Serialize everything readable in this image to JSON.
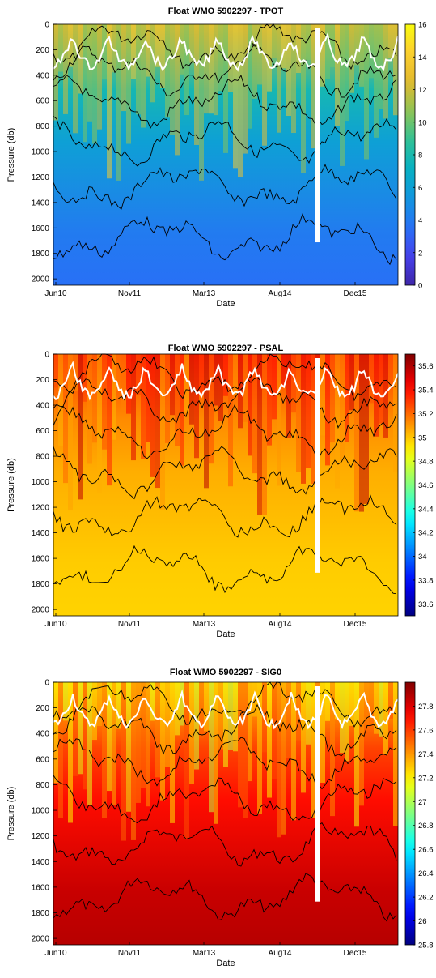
{
  "chart_data": [
    {
      "type": "heatmap",
      "title": "Float WMO 5902297 - TPOT",
      "xlabel": "Date",
      "ylabel": "Pressure (db)",
      "x_ticks": [
        "Jun10",
        "Nov11",
        "Mar13",
        "Aug14",
        "Dec15"
      ],
      "y_ticks": [
        0,
        200,
        400,
        600,
        800,
        1000,
        1200,
        1400,
        1600,
        1800,
        2000
      ],
      "ylim": [
        2050,
        0
      ],
      "y_reversed": true,
      "colorbar": {
        "min": 0,
        "max": 16,
        "ticks": [
          0,
          2,
          4,
          6,
          8,
          10,
          12,
          14,
          16
        ]
      },
      "colormap": "parula",
      "typical_values": {
        "surface": 12,
        "mid": 6,
        "deep": 3.5
      },
      "contours": true,
      "mixed_layer_line_color": "#ffffff"
    },
    {
      "type": "heatmap",
      "title": "Float WMO 5902297 - PSAL",
      "xlabel": "Date",
      "ylabel": "Pressure (db)",
      "x_ticks": [
        "Jun10",
        "Nov11",
        "Mar13",
        "Aug14",
        "Dec15"
      ],
      "y_ticks": [
        0,
        200,
        400,
        600,
        800,
        1000,
        1200,
        1400,
        1600,
        1800,
        2000
      ],
      "ylim": [
        2050,
        0
      ],
      "y_reversed": true,
      "colorbar": {
        "min": 33.5,
        "max": 35.7,
        "ticks": [
          33.6,
          33.8,
          34,
          34.2,
          34.4,
          34.6,
          34.8,
          35,
          35.2,
          35.4,
          35.6
        ]
      },
      "colormap": "jet",
      "typical_values": {
        "surface": 35.3,
        "mid": 35.05,
        "deep": 34.97
      },
      "contours": true,
      "mixed_layer_line_color": "#ffffff"
    },
    {
      "type": "heatmap",
      "title": "Float WMO 5902297 - SIG0",
      "xlabel": "Date",
      "ylabel": "Pressure (db)",
      "x_ticks": [
        "Jun10",
        "Nov11",
        "Mar13",
        "Aug14",
        "Dec15"
      ],
      "y_ticks": [
        0,
        200,
        400,
        600,
        800,
        1000,
        1200,
        1400,
        1600,
        1800,
        2000
      ],
      "ylim": [
        2050,
        0
      ],
      "y_reversed": true,
      "colorbar": {
        "min": 25.8,
        "max": 28.0,
        "ticks": [
          25.8,
          26,
          26.2,
          26.4,
          26.6,
          26.8,
          27,
          27.2,
          27.4,
          27.6,
          27.8
        ]
      },
      "colormap": "jet",
      "typical_values": {
        "surface": 27.3,
        "mid": 27.7,
        "deep": 27.88
      },
      "contours": true,
      "mixed_layer_line_color": "#ffffff"
    }
  ]
}
